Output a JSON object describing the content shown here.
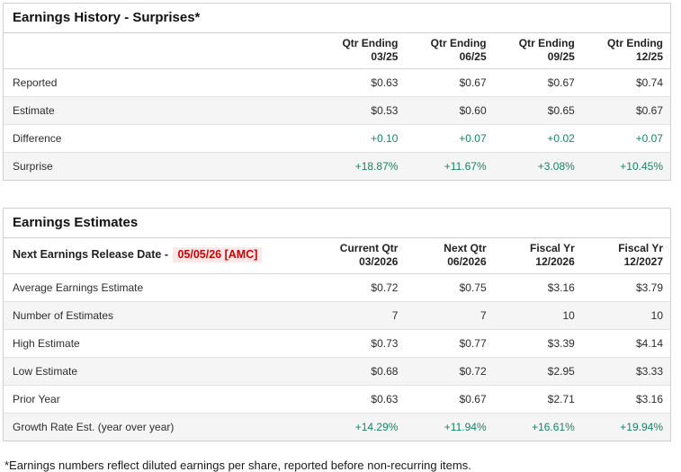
{
  "colors": {
    "green": "#16855C",
    "red": "#CC0000",
    "red_bg": "#FCE8E8"
  },
  "earnings_history": {
    "title": "Earnings History - Surprises*",
    "columns": [
      {
        "line1": "Qtr Ending",
        "line2": "03/25"
      },
      {
        "line1": "Qtr Ending",
        "line2": "06/25"
      },
      {
        "line1": "Qtr Ending",
        "line2": "09/25"
      },
      {
        "line1": "Qtr Ending",
        "line2": "12/25"
      }
    ],
    "rows": [
      {
        "label": "Reported",
        "values": [
          "$0.63",
          "$0.67",
          "$0.67",
          "$0.74"
        ]
      },
      {
        "label": "Estimate",
        "values": [
          "$0.53",
          "$0.60",
          "$0.65",
          "$0.67"
        ]
      },
      {
        "label": "Difference",
        "values": [
          "+0.10",
          "+0.07",
          "+0.02",
          "+0.07"
        ]
      },
      {
        "label": "Surprise",
        "values": [
          "+18.87%",
          "+11.67%",
          "+3.08%",
          "+10.45%"
        ]
      }
    ]
  },
  "earnings_estimates": {
    "title": "Earnings Estimates",
    "release_date_label": "Next Earnings Release Date - ",
    "release_date_value": "05/05/26 [AMC]",
    "columns": [
      {
        "line1": "Current Qtr",
        "line2": "03/2026"
      },
      {
        "line1": "Next Qtr",
        "line2": "06/2026"
      },
      {
        "line1": "Fiscal Yr",
        "line2": "12/2026"
      },
      {
        "line1": "Fiscal Yr",
        "line2": "12/2027"
      }
    ],
    "rows": [
      {
        "label": "Average Earnings Estimate",
        "values": [
          "$0.72",
          "$0.75",
          "$3.16",
          "$3.79"
        ]
      },
      {
        "label": "Number of Estimates",
        "values": [
          "7",
          "7",
          "10",
          "10"
        ]
      },
      {
        "label": "High Estimate",
        "values": [
          "$0.73",
          "$0.77",
          "$3.39",
          "$4.14"
        ]
      },
      {
        "label": "Low Estimate",
        "values": [
          "$0.68",
          "$0.72",
          "$2.95",
          "$3.33"
        ]
      },
      {
        "label": "Prior Year",
        "values": [
          "$0.63",
          "$0.67",
          "$2.71",
          "$3.16"
        ]
      },
      {
        "label": "Growth Rate Est. (year over year)",
        "values": [
          "+14.29%",
          "+11.94%",
          "+16.61%",
          "+19.94%"
        ]
      }
    ]
  },
  "footnote": "*Earnings numbers reflect diluted earnings per share, reported before non-recurring items."
}
